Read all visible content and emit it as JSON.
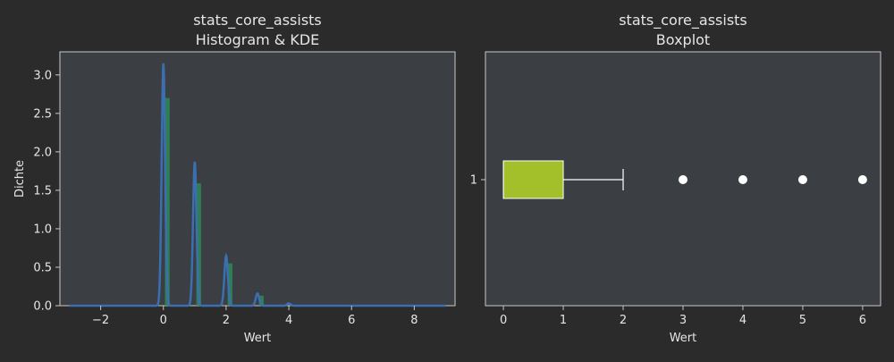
{
  "chart_data": [
    {
      "type": "histogram+kde",
      "title": "stats_core_assists",
      "subtitle": "Histogram & KDE",
      "xlabel": "Wert",
      "ylabel": "Dichte",
      "xlim": [
        -3.3,
        9.3
      ],
      "ylim": [
        0,
        3.3
      ],
      "xticks": [
        -2,
        0,
        2,
        4,
        6,
        8
      ],
      "xtick_labels": [
        "−2",
        "0",
        "2",
        "4",
        "6",
        "8"
      ],
      "yticks": [
        0,
        0.5,
        1.0,
        1.5,
        2.0,
        2.5,
        3.0
      ],
      "ytick_labels": [
        "0.0",
        "0.5",
        "1.0",
        "1.5",
        "2.0",
        "2.5",
        "3.0"
      ],
      "histogram": {
        "color": "#2e8b57",
        "bars": [
          {
            "x0": 0.05,
            "x1": 0.2,
            "density": 2.7
          },
          {
            "x0": 1.05,
            "x1": 1.2,
            "density": 1.59
          },
          {
            "x0": 2.05,
            "x1": 2.2,
            "density": 0.55
          },
          {
            "x0": 3.05,
            "x1": 3.2,
            "density": 0.13
          },
          {
            "x0": 4.05,
            "x1": 4.2,
            "density": 0.01
          }
        ]
      },
      "kde": {
        "color": "#3b6fb0",
        "x_range": [
          -3,
          9
        ],
        "peaks": [
          {
            "center": 0,
            "height": 3.15
          },
          {
            "center": 1,
            "height": 1.87
          },
          {
            "center": 2,
            "height": 0.65
          },
          {
            "center": 3,
            "height": 0.16
          },
          {
            "center": 4,
            "height": 0.03
          }
        ]
      },
      "grid": false
    },
    {
      "type": "boxplot",
      "title": "stats_core_assists",
      "subtitle": "Boxplot",
      "xlabel": "Wert",
      "xlim": [
        -0.3,
        6.3
      ],
      "xticks": [
        0,
        1,
        2,
        3,
        4,
        5,
        6
      ],
      "xtick_labels": [
        "0",
        "1",
        "2",
        "3",
        "4",
        "5",
        "6"
      ],
      "ytick_labels": [
        "1"
      ],
      "box": {
        "min": 0,
        "q1": 0,
        "median": 0,
        "q3": 1,
        "whisker_high": 2,
        "outliers": [
          3,
          4,
          5,
          6
        ],
        "color": "#a3bf2a"
      },
      "grid": false
    }
  ]
}
